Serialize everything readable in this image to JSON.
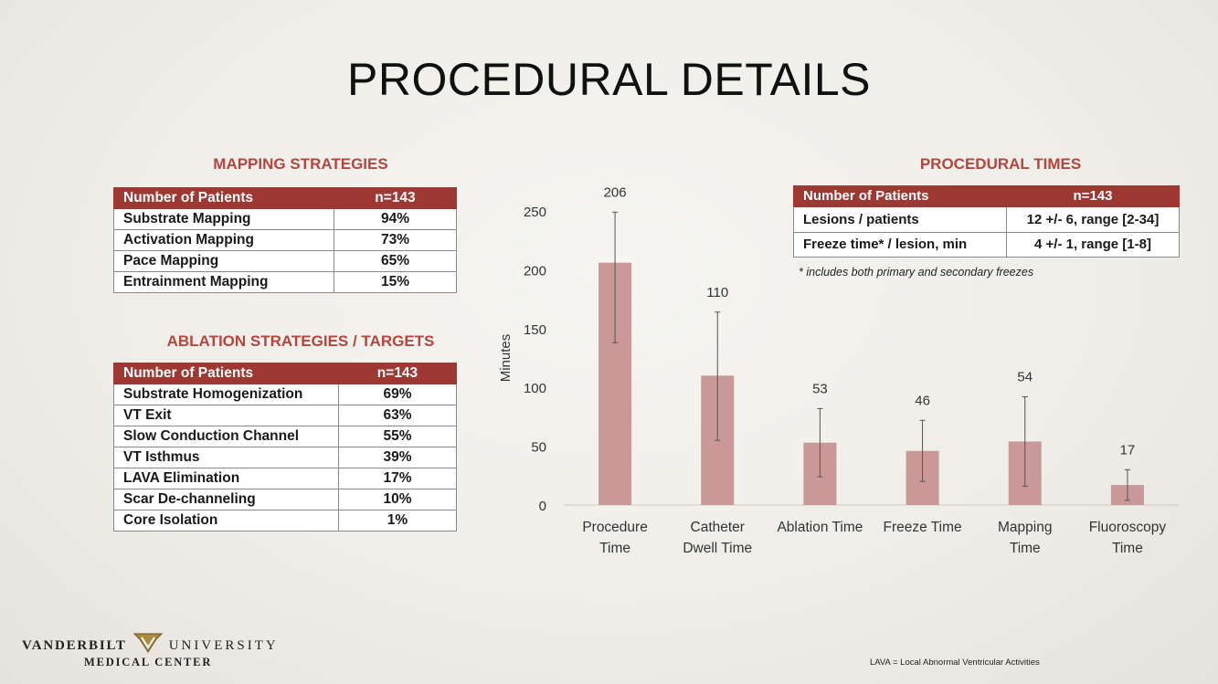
{
  "title": "PROCEDURAL DETAILS",
  "mapping": {
    "heading": "MAPPING STRATEGIES",
    "header": {
      "label": "Number of Patients",
      "value": "n=143"
    },
    "rows": [
      {
        "label": "Substrate Mapping",
        "value": "94%"
      },
      {
        "label": "Activation Mapping",
        "value": "73%"
      },
      {
        "label": "Pace Mapping",
        "value": "65%"
      },
      {
        "label": "Entrainment Mapping",
        "value": "15%"
      }
    ]
  },
  "ablation": {
    "heading": "ABLATION STRATEGIES / TARGETS",
    "header": {
      "label": "Number of Patients",
      "value": "n=143"
    },
    "rows": [
      {
        "label": "Substrate Homogenization",
        "value": "69%"
      },
      {
        "label": "VT Exit",
        "value": "63%"
      },
      {
        "label": "Slow Conduction Channel",
        "value": "55%"
      },
      {
        "label": "VT Isthmus",
        "value": "39%"
      },
      {
        "label": "LAVA Elimination",
        "value": "17%"
      },
      {
        "label": "Scar De-channeling",
        "value": "10%"
      },
      {
        "label": "Core Isolation",
        "value": "1%"
      }
    ]
  },
  "procedural_times": {
    "heading": "PROCEDURAL TIMES",
    "header": {
      "label": "Number of Patients",
      "value": "n=143"
    },
    "rows": [
      {
        "label": "Lesions / patients",
        "value": "12 +/- 6, range [2-34]"
      },
      {
        "label": "Freeze time* / lesion, min",
        "value": "4 +/- 1, range [1-8]"
      }
    ],
    "footnote": "* includes both primary and secondary freezes"
  },
  "chart_data": {
    "type": "bar",
    "categories": [
      [
        "Procedure",
        "Time"
      ],
      [
        "Catheter",
        "Dwell Time"
      ],
      [
        "Ablation Time"
      ],
      [
        "Freeze Time"
      ],
      [
        "Mapping",
        "Time"
      ],
      [
        "Fluoroscopy",
        "Time"
      ]
    ],
    "values": [
      206,
      110,
      53,
      46,
      54,
      17
    ],
    "error_low": [
      138,
      55,
      24,
      20,
      16,
      4
    ],
    "error_high": [
      249,
      164,
      82,
      72,
      92,
      30
    ],
    "ylabel": "Minutes",
    "ylim": [
      0,
      250
    ],
    "yticks": [
      0,
      50,
      100,
      150,
      200,
      250
    ],
    "bar_color": "#c99898",
    "grid": false
  },
  "logo": {
    "top": "VANDERBILT",
    "right": "UNIVERSITY",
    "bottom": "MEDICAL CENTER"
  },
  "lava_note": "LAVA = Local Abnormal Ventricular Activities"
}
